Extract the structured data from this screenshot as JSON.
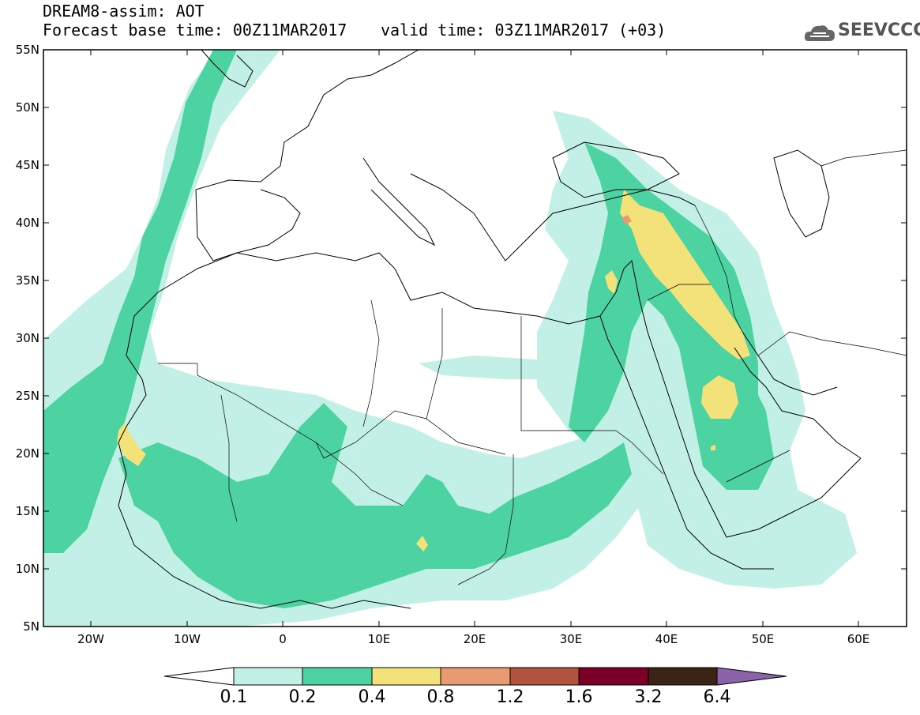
{
  "header": {
    "title": "DREAM8-assim: AOT",
    "base_time": "Forecast base time: 00Z11MAR2017",
    "valid_time": "valid time: 03Z11MAR2017 (+03)",
    "logo_text": "SEEVCCC"
  },
  "map": {
    "lat_labels": [
      "55N",
      "50N",
      "45N",
      "40N",
      "35N",
      "30N",
      "25N",
      "20N",
      "15N",
      "10N",
      "5N"
    ],
    "lon_labels": [
      "20W",
      "10W",
      "0",
      "10E",
      "20E",
      "30E",
      "40E",
      "50E",
      "60E"
    ]
  },
  "colorbar": {
    "levels": [
      "0.1",
      "0.2",
      "0.4",
      "0.8",
      "1.2",
      "1.6",
      "3.2",
      "6.4"
    ],
    "colors": [
      "#c2f0e6",
      "#4dd3a2",
      "#f3e27a",
      "#e99a70",
      "#b0543f",
      "#7a0028",
      "#3b2416",
      "#8a63a8"
    ]
  }
}
